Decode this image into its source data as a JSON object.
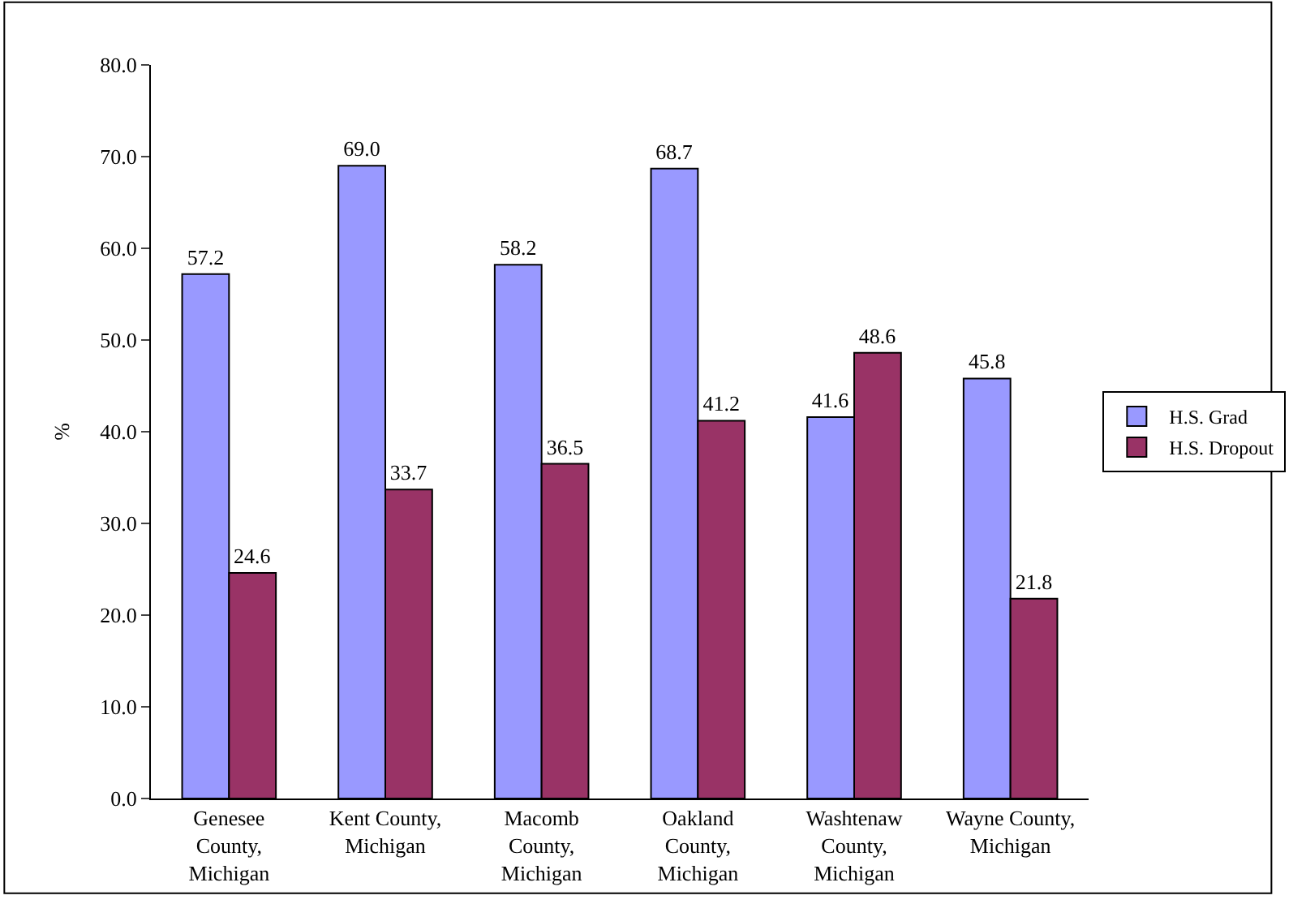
{
  "chart_data": {
    "type": "bar",
    "ylabel": "%",
    "categories": [
      "Genesee County, Michigan",
      "Kent County, Michigan",
      "Macomb County, Michigan",
      "Oakland County, Michigan",
      "Washtenaw County, Michigan",
      "Wayne County, Michigan"
    ],
    "series": [
      {
        "name": "H.S. Grad",
        "color": "#9999ff",
        "values": [
          57.2,
          69.0,
          58.2,
          68.7,
          41.6,
          45.8
        ],
        "value_labels": [
          "57.2",
          "69.0",
          "58.2",
          "68.7",
          "41.6",
          "45.8"
        ]
      },
      {
        "name": "H.S. Dropout",
        "color": "#993366",
        "values": [
          24.6,
          33.7,
          36.5,
          41.2,
          48.6,
          21.8
        ],
        "value_labels": [
          "24.6",
          "33.7",
          "36.5",
          "41.2",
          "48.6",
          "21.8"
        ]
      }
    ],
    "ylim": [
      0,
      80
    ],
    "yticks": [
      {
        "value": 0,
        "label": "0.0"
      },
      {
        "value": 10,
        "label": "10.0"
      },
      {
        "value": 20,
        "label": "20.0"
      },
      {
        "value": 30,
        "label": "30.0"
      },
      {
        "value": 40,
        "label": "40.0"
      },
      {
        "value": 50,
        "label": "50.0"
      },
      {
        "value": 60,
        "label": "60.0"
      },
      {
        "value": 70,
        "label": "70.0"
      },
      {
        "value": 80,
        "label": "80.0"
      }
    ],
    "legend": "right"
  }
}
